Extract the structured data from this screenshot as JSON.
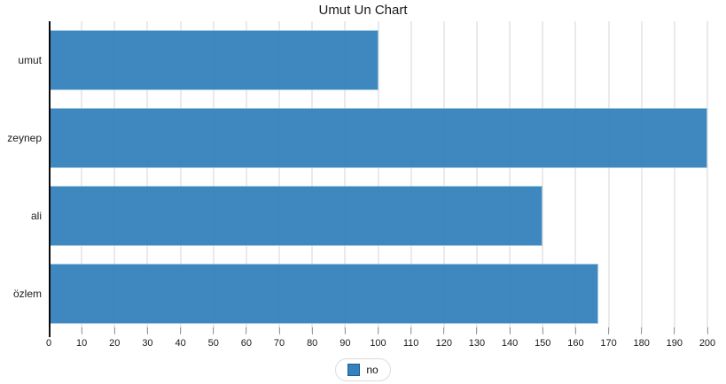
{
  "title": "Umut Un Chart",
  "legend": {
    "position": "bottom",
    "items": [
      {
        "label": "no",
        "color": "#3581bc"
      }
    ]
  },
  "chart_data": {
    "type": "bar",
    "orientation": "horizontal",
    "title": "Umut Un Chart",
    "xlabel": "",
    "ylabel": "",
    "categories": [
      "umut",
      "zeynep",
      "ali",
      "özlem"
    ],
    "series": [
      {
        "name": "no",
        "values": [
          100,
          200,
          150,
          167
        ]
      }
    ],
    "xlim": [
      0,
      200
    ],
    "x_ticks": [
      0,
      10,
      20,
      30,
      40,
      50,
      60,
      70,
      80,
      90,
      100,
      110,
      120,
      130,
      140,
      150,
      160,
      170,
      180,
      190,
      200
    ],
    "grid": true,
    "grid_color": "#eaeaea",
    "bar_color": "#3581bc",
    "axis_color": "#0a0a0a",
    "legend_position": "bottom"
  }
}
